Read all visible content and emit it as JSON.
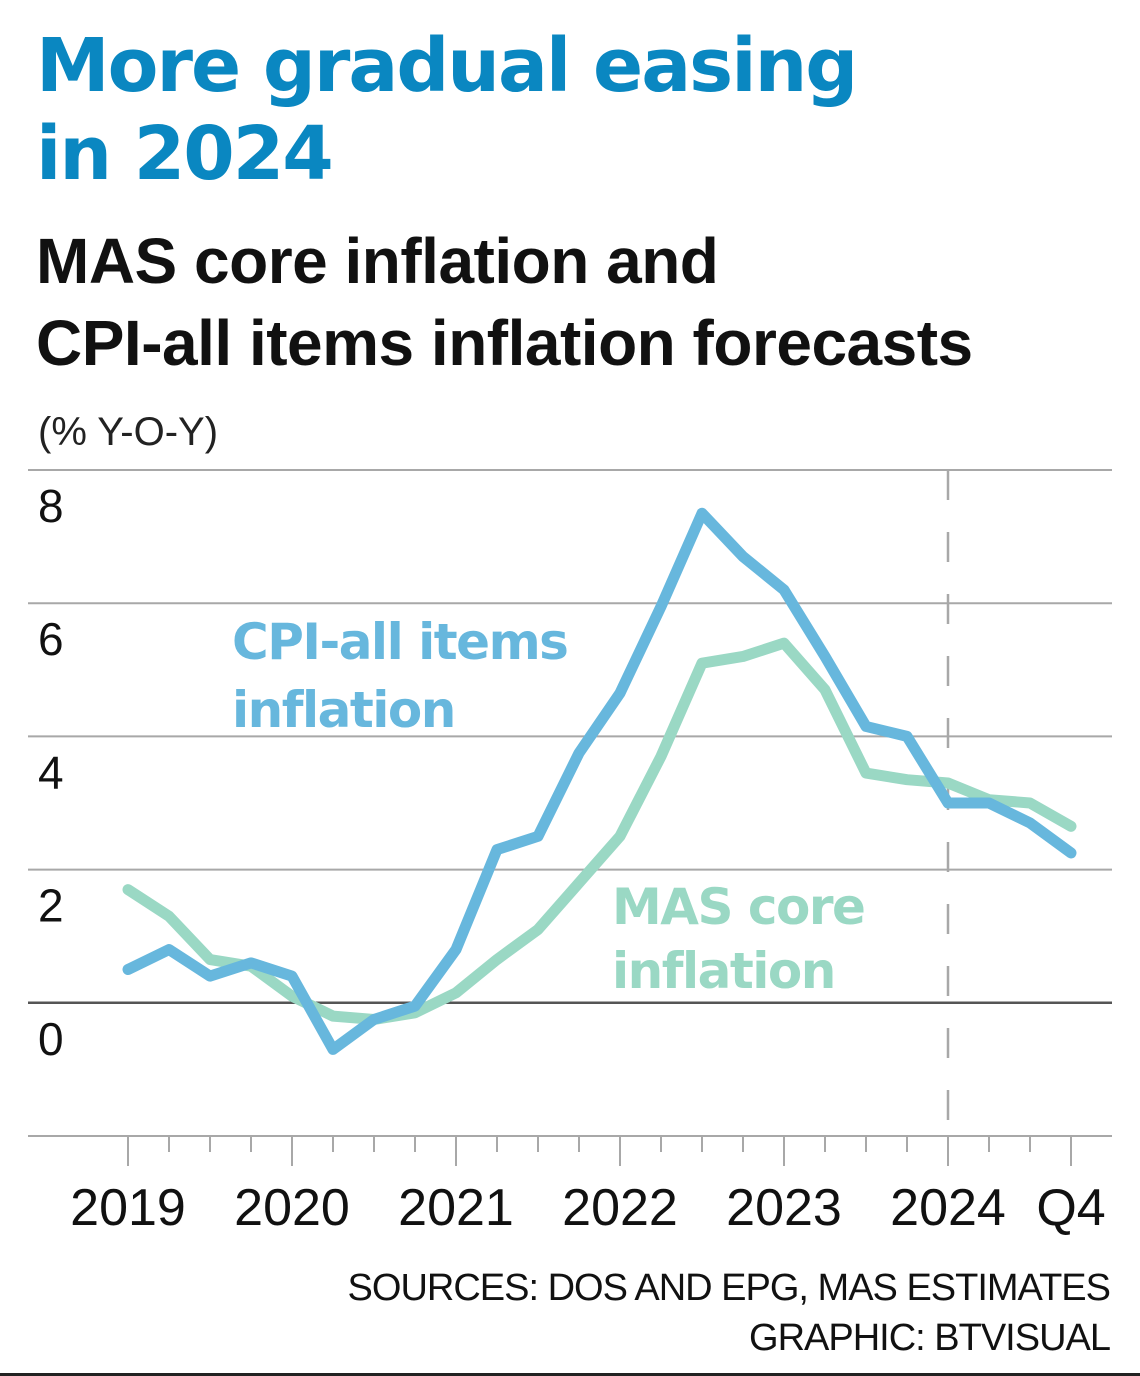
{
  "header": {
    "title_lines": [
      "More gradual easing",
      "in 2024"
    ],
    "subtitle_lines": [
      "MAS core inflation and",
      "CPI-all items inflation forecasts"
    ],
    "unit": "(% Y-O-Y)"
  },
  "footer": {
    "sources": "SOURCES: DOS AND EPG, MAS ESTIMATES",
    "graphic": "GRAPHIC: BTVISUAL"
  },
  "colors": {
    "title": "#0a87c1",
    "cpi": "#67b7dd",
    "core": "#9ad8c4",
    "grid": "#a8a8a8",
    "zero_line": "#555555"
  },
  "chart_data": {
    "type": "line",
    "title": "MAS core inflation and CPI-all items inflation forecasts",
    "ylabel": "% Y-O-Y",
    "xlabel": "",
    "ylim": [
      -2,
      8
    ],
    "yticks": [
      8,
      6,
      4,
      2,
      0
    ],
    "grid": true,
    "x": [
      "2019Q1",
      "2019Q2",
      "2019Q3",
      "2019Q4",
      "2020Q1",
      "2020Q2",
      "2020Q3",
      "2020Q4",
      "2021Q1",
      "2021Q2",
      "2021Q3",
      "2021Q4",
      "2022Q1",
      "2022Q2",
      "2022Q3",
      "2022Q4",
      "2023Q1",
      "2023Q2",
      "2023Q3",
      "2023Q4",
      "2024Q1",
      "2024Q2",
      "2024Q3",
      "2024Q4"
    ],
    "xtick_labels": [
      {
        "label": "2019",
        "index": 0
      },
      {
        "label": "2020",
        "index": 4
      },
      {
        "label": "2021",
        "index": 8
      },
      {
        "label": "2022",
        "index": 12
      },
      {
        "label": "2023",
        "index": 16
      },
      {
        "label": "2024",
        "index": 20
      },
      {
        "label": "Q4",
        "index": 23
      }
    ],
    "forecast_start_index": 20,
    "series": [
      {
        "name": "CPI-all items inflation",
        "label_lines": [
          "CPI-all items",
          "inflation"
        ],
        "color": "#67b7dd",
        "values": [
          0.5,
          0.8,
          0.4,
          0.6,
          0.4,
          -0.7,
          -0.25,
          -0.05,
          0.8,
          2.3,
          2.5,
          3.75,
          4.65,
          5.95,
          7.35,
          6.7,
          6.2,
          5.2,
          4.15,
          4.0,
          3.0,
          3.0,
          2.7,
          2.25
        ]
      },
      {
        "name": "MAS core inflation",
        "label_lines": [
          "MAS core",
          "inflation"
        ],
        "color": "#9ad8c4",
        "values": [
          1.7,
          1.3,
          0.65,
          0.55,
          0.1,
          -0.2,
          -0.25,
          -0.15,
          0.15,
          0.65,
          1.1,
          1.8,
          2.5,
          3.7,
          5.1,
          5.2,
          5.4,
          4.7,
          3.45,
          3.35,
          3.3,
          3.05,
          3.0,
          2.65
        ]
      }
    ]
  }
}
